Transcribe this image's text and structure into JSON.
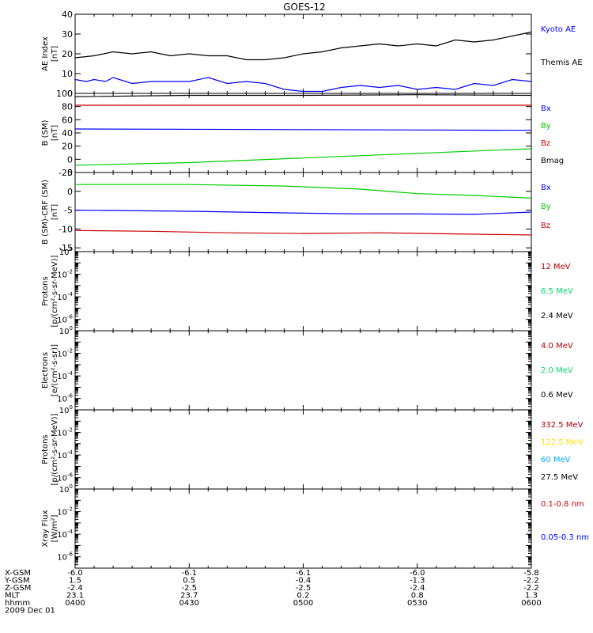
{
  "title": "GOES-12",
  "colors": {
    "black": "#000000",
    "blue": "#0000ff",
    "red": "#cc0000",
    "green": "#00cc00",
    "darkred": "#b00000",
    "yellow": "#ffe000",
    "cyan": "#00aaff",
    "bright_green": "#00dd66"
  },
  "x_axis": {
    "rows": [
      {
        "label": "X-GSM",
        "values": [
          "-6.0",
          "-6.1",
          "-6.1",
          "-6.0",
          "-5.8"
        ]
      },
      {
        "label": "Y-GSM",
        "values": [
          "1.5",
          "0.5",
          "-0.4",
          "-1.3",
          "-2.2"
        ]
      },
      {
        "label": "Z-GSM",
        "values": [
          "-2.4",
          "-2.5",
          "-2.5",
          "-2.4",
          "-2.2"
        ]
      },
      {
        "label": "MLT",
        "values": [
          "23.1",
          "23.7",
          "0.2",
          "0.8",
          "1.3"
        ]
      },
      {
        "label": "hhmm",
        "values": [
          "0400",
          "0430",
          "0500",
          "0530",
          "0600"
        ]
      }
    ],
    "date": "2009 Dec 01"
  },
  "chart_data": [
    {
      "type": "line",
      "ylabel": [
        "AE Index",
        "[nT]"
      ],
      "ylim": [
        0,
        40
      ],
      "yticks": [
        "0",
        "10",
        "20",
        "30",
        "40"
      ],
      "series": [
        {
          "name": "Kyoto AE",
          "color": "blue",
          "label_color": "blue",
          "x": [
            0,
            3,
            5,
            8,
            10,
            15,
            20,
            25,
            30,
            35,
            40,
            45,
            50,
            55,
            60,
            65,
            70,
            75,
            80,
            85,
            90,
            95,
            100,
            105,
            110,
            115,
            120
          ],
          "values": [
            7,
            6,
            7,
            6,
            8,
            5,
            6,
            6,
            6,
            8,
            5,
            6,
            5,
            2,
            1,
            1,
            3,
            4,
            3,
            4,
            2,
            3,
            2,
            5,
            4,
            7,
            6
          ]
        },
        {
          "name": "Themis AE",
          "color": "black",
          "label_color": "black",
          "x": [
            0,
            5,
            10,
            15,
            20,
            25,
            30,
            35,
            40,
            45,
            50,
            55,
            60,
            65,
            70,
            75,
            80,
            85,
            90,
            95,
            100,
            105,
            110,
            115,
            120
          ],
          "values": [
            18,
            19,
            21,
            20,
            21,
            19,
            20,
            19,
            19,
            17,
            17,
            18,
            20,
            21,
            23,
            24,
            25,
            24,
            25,
            24,
            27,
            26,
            27,
            29,
            31
          ]
        }
      ]
    },
    {
      "type": "line",
      "ylabel": [
        "B (SM)",
        "[nT]"
      ],
      "ylim": [
        -20,
        100
      ],
      "yticks": [
        "-20",
        "0",
        "20",
        "40",
        "60",
        "80",
        "100"
      ],
      "series": [
        {
          "name": "Bx",
          "color": "blue",
          "label_color": "blue",
          "x": [
            0,
            60,
            120
          ],
          "values": [
            46,
            45,
            44
          ]
        },
        {
          "name": "By",
          "color": "green",
          "label_color": "green",
          "x": [
            0,
            30,
            60,
            90,
            120
          ],
          "values": [
            -9,
            -5,
            2,
            9,
            16
          ]
        },
        {
          "name": "Bz",
          "color": "red",
          "label_color": "red",
          "x": [
            0,
            60,
            120
          ],
          "values": [
            82,
            82,
            82
          ]
        },
        {
          "name": "Bmag",
          "color": "black",
          "label_color": "black",
          "x": [
            0,
            30,
            60,
            90,
            120
          ],
          "values": [
            95,
            97,
            97,
            98,
            97
          ]
        }
      ]
    },
    {
      "type": "line",
      "ylabel": [
        "B (SM)-CRF (SM)",
        "[nT]"
      ],
      "ylim": [
        -16,
        5
      ],
      "yticks": [
        "-15",
        "-10",
        "-5",
        "0",
        "5"
      ],
      "series": [
        {
          "name": "Bx",
          "color": "blue",
          "label_color": "blue",
          "x": [
            0,
            30,
            60,
            75,
            90,
            105,
            120
          ],
          "values": [
            -5,
            -5.3,
            -5.8,
            -6,
            -6,
            -6.1,
            -5.5
          ]
        },
        {
          "name": "By",
          "color": "green",
          "label_color": "green",
          "x": [
            0,
            30,
            55,
            75,
            90,
            105,
            120
          ],
          "values": [
            1.8,
            1.8,
            1.4,
            0.6,
            -0.6,
            -1.1,
            -1.8
          ]
        },
        {
          "name": "Bz",
          "color": "red",
          "label_color": "red",
          "x": [
            0,
            20,
            40,
            60,
            80,
            100,
            120
          ],
          "values": [
            -10.4,
            -10.6,
            -11,
            -11.2,
            -11,
            -11.3,
            -11.6
          ]
        }
      ]
    },
    {
      "type": "line",
      "log": true,
      "ylabel": [
        "Protons",
        "[p/(cm²-s-sr-MeV)]"
      ],
      "ylim_exp": [
        -7,
        0
      ],
      "series": [
        {
          "name": "12 MeV",
          "label_color": "darkred",
          "x": [],
          "values": []
        },
        {
          "name": "6.5 MeV",
          "label_color": "bright_green",
          "x": [],
          "values": []
        },
        {
          "name": "2.4 MeV",
          "label_color": "black",
          "x": [],
          "values": []
        }
      ]
    },
    {
      "type": "line",
      "log": true,
      "ylabel": [
        "Electrons",
        "[e/(cm²-s-sr)]"
      ],
      "ylim_exp": [
        -7,
        0
      ],
      "series": [
        {
          "name": "4.0 MeV",
          "label_color": "darkred",
          "x": [],
          "values": []
        },
        {
          "name": "2.0 MeV",
          "label_color": "bright_green",
          "x": [],
          "values": []
        },
        {
          "name": "0.6 MeV",
          "label_color": "black",
          "x": [],
          "values": []
        }
      ]
    },
    {
      "type": "line",
      "log": true,
      "ylabel": [
        "Protons",
        "[p/(cm²-s-sr-MeV)]"
      ],
      "ylim_exp": [
        -7,
        0
      ],
      "series": [
        {
          "name": "332.5 MeV",
          "label_color": "darkred",
          "x": [],
          "values": []
        },
        {
          "name": "122.5 MeV",
          "label_color": "yellow",
          "x": [],
          "values": []
        },
        {
          "name": "60 MeV",
          "label_color": "cyan",
          "x": [],
          "values": []
        },
        {
          "name": "27.5 MeV",
          "label_color": "black",
          "x": [],
          "values": []
        }
      ]
    },
    {
      "type": "line",
      "log": true,
      "ylabel": [
        "Xray Flux",
        "[W/m²]"
      ],
      "ylim_exp": [
        -7,
        0
      ],
      "series": [
        {
          "name": "0.1-0.8 nm",
          "label_color": "red",
          "x": [],
          "values": []
        },
        {
          "name": "0.05-0.3 nm",
          "label_color": "blue",
          "x": [],
          "values": []
        }
      ]
    }
  ]
}
